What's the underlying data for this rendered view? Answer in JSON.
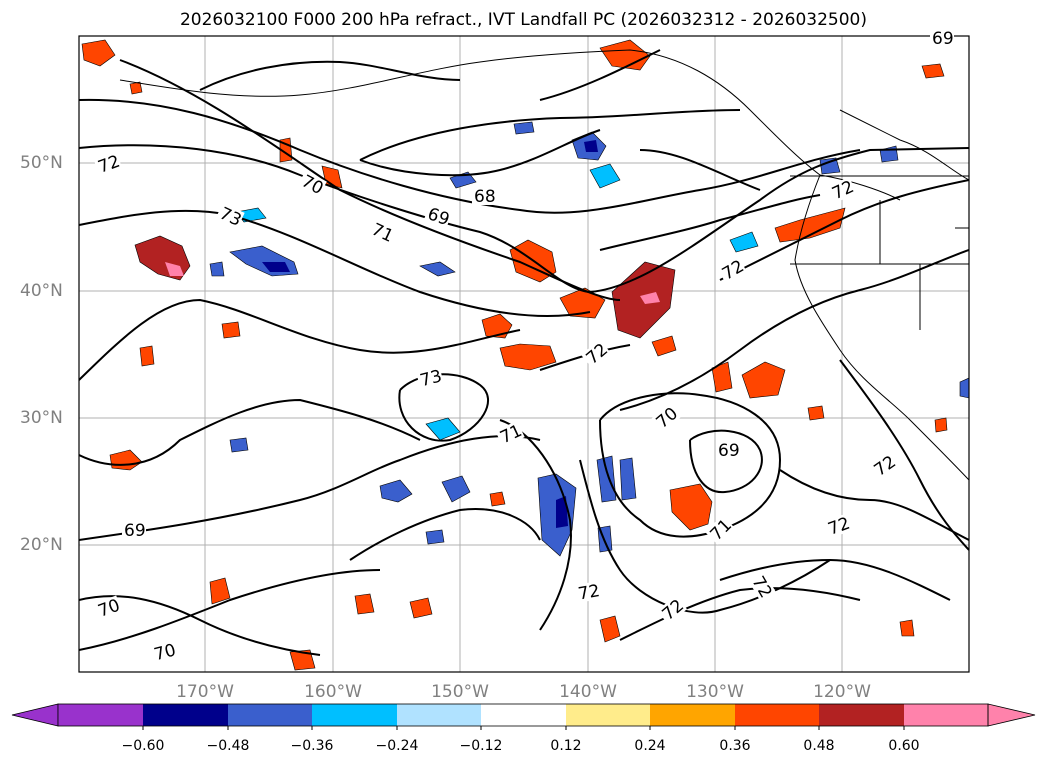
{
  "title": "2026032100 F000 200 hPa refract., IVT Landfall PC (2026032312 - 2026032500)",
  "lat_labels": [
    "50°N",
    "40°N",
    "30°N",
    "20°N"
  ],
  "lon_labels": [
    "170°W",
    "160°W",
    "150°W",
    "140°W",
    "130°W",
    "120°W"
  ],
  "contour_labels": [
    {
      "text": "72"
    },
    {
      "text": "70"
    },
    {
      "text": "73"
    },
    {
      "text": "69"
    },
    {
      "text": "68"
    },
    {
      "text": "71"
    },
    {
      "text": "72"
    },
    {
      "text": "72"
    },
    {
      "text": "72"
    },
    {
      "text": "73"
    },
    {
      "text": "71"
    },
    {
      "text": "70"
    },
    {
      "text": "69"
    },
    {
      "text": "72"
    },
    {
      "text": "69"
    },
    {
      "text": "71"
    },
    {
      "text": "72"
    },
    {
      "text": "72"
    },
    {
      "text": "72"
    },
    {
      "text": "72"
    },
    {
      "text": "70"
    },
    {
      "text": "70"
    },
    {
      "text": "69"
    }
  ],
  "colorbar": {
    "ticks": [
      "−0.60",
      "−0.48",
      "−0.36",
      "−0.24",
      "−0.12",
      "0.12",
      "0.24",
      "0.36",
      "0.48",
      "0.60"
    ],
    "colors": [
      "#9932CC",
      "#00008B",
      "#3A5FCD",
      "#00BFFF",
      "#B0E2FF",
      "#FFFFFF",
      "#FFEC8B",
      "#FFA500",
      "#FF4500",
      "#B22222",
      "#FF82AB",
      "#FF82AB"
    ]
  },
  "palette": {
    "pos_light": "#FFEC8B",
    "pos_orange": "#FFA500",
    "pos_red": "#FF4500",
    "pos_dark": "#B22222",
    "pos_pink": "#FF82AB",
    "neg_light": "#B0E2FF",
    "neg_cyan": "#00BFFF",
    "neg_blue": "#3A5FCD",
    "neg_navy": "#00008B"
  }
}
